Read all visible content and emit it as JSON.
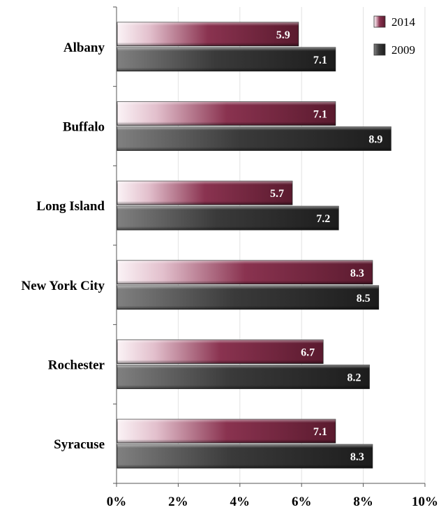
{
  "chart_data": {
    "type": "bar",
    "orientation": "horizontal",
    "title": "",
    "xlabel": "",
    "ylabel": "",
    "categories": [
      "Albany",
      "Buffalo",
      "Long Island",
      "New York City",
      "Rochester",
      "Syracuse"
    ],
    "series": [
      {
        "name": "2014",
        "values": [
          5.9,
          7.1,
          5.7,
          8.3,
          6.7,
          7.1
        ],
        "color": "#6b1f37"
      },
      {
        "name": "2009",
        "values": [
          7.1,
          8.9,
          7.2,
          8.5,
          8.2,
          8.3
        ],
        "color": "#2a2a2a"
      }
    ],
    "xlim": [
      0,
      10
    ],
    "xticks": [
      0,
      2,
      4,
      6,
      8,
      10
    ],
    "x_tick_labels": [
      "0%",
      "2%",
      "4%",
      "6%",
      "8%",
      "10%"
    ],
    "grid": "vertical",
    "legend": {
      "position": "top-right",
      "entries": [
        "2014",
        "2009"
      ]
    },
    "data_labels": true
  }
}
